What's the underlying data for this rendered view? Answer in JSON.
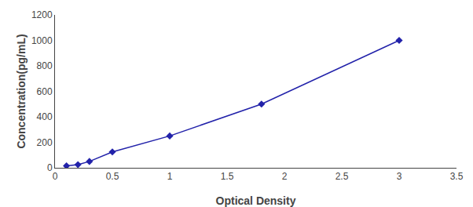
{
  "chart_data": {
    "type": "line",
    "x": [
      0.1,
      0.2,
      0.3,
      0.5,
      1.0,
      1.8,
      3.0
    ],
    "values": [
      15,
      25,
      50,
      125,
      250,
      500,
      1000
    ],
    "xlabel": "Optical Density",
    "ylabel": "Concentration(pg/mL)",
    "xlim": [
      0,
      3.5
    ],
    "ylim": [
      0,
      1200
    ],
    "xticks": [
      0,
      0.5,
      1,
      1.5,
      2,
      2.5,
      3,
      3.5
    ],
    "yticks": [
      0,
      200,
      400,
      600,
      800,
      1000,
      1200
    ],
    "color": "#2222aa",
    "marker": "diamond",
    "grid": false
  }
}
